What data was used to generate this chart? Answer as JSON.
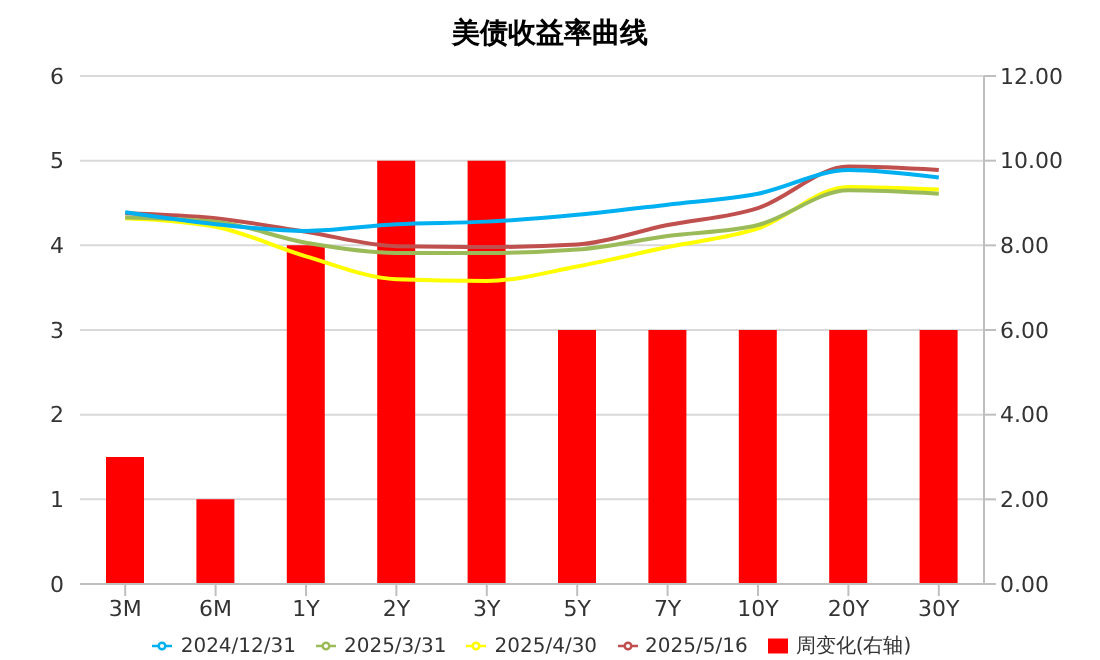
{
  "chart_data": {
    "type": "line",
    "title": "美债收益率曲线",
    "categories": [
      "3M",
      "6M",
      "1Y",
      "2Y",
      "3Y",
      "5Y",
      "7Y",
      "10Y",
      "20Y",
      "30Y"
    ],
    "series": [
      {
        "name": "周变化(右轴)",
        "type": "bar",
        "axis": "y2",
        "color": "#ff0000",
        "values": [
          3,
          2,
          8,
          10,
          10,
          6,
          6,
          6,
          6,
          6
        ]
      },
      {
        "name": "2025/5/16",
        "color": "#c0504d",
        "values": [
          4.38,
          4.32,
          4.16,
          3.99,
          3.98,
          4.01,
          4.24,
          4.44,
          4.93,
          4.89
        ]
      },
      {
        "name": "2025/4/30",
        "color": "#ffff00",
        "values": [
          4.32,
          4.22,
          3.87,
          3.6,
          3.58,
          3.75,
          3.98,
          4.2,
          4.69,
          4.66
        ]
      },
      {
        "name": "2025/3/31",
        "color": "#9bbb59",
        "values": [
          4.33,
          4.28,
          4.03,
          3.91,
          3.91,
          3.95,
          4.11,
          4.24,
          4.65,
          4.61
        ]
      },
      {
        "name": "2024/12/31",
        "color": "#00b0f0",
        "values": [
          4.39,
          4.25,
          4.17,
          4.25,
          4.28,
          4.36,
          4.48,
          4.61,
          4.89,
          4.8
        ]
      }
    ],
    "ylim": [
      0,
      6
    ],
    "yticks": [
      0,
      1,
      2,
      3,
      4,
      5,
      6
    ],
    "y2lim": [
      0,
      12
    ],
    "y2ticks": [
      {
        "value": 0,
        "label": "0.00"
      },
      {
        "value": 2,
        "label": "2.00"
      },
      {
        "value": 4,
        "label": "4.00"
      },
      {
        "value": 6,
        "label": "6.00"
      },
      {
        "value": 8,
        "label": "8.00"
      },
      {
        "value": 10,
        "label": "10.00"
      },
      {
        "value": 12,
        "label": "12.00"
      }
    ],
    "grid": "y",
    "legend": "bottom",
    "marker": "none",
    "line_style": "solid"
  }
}
